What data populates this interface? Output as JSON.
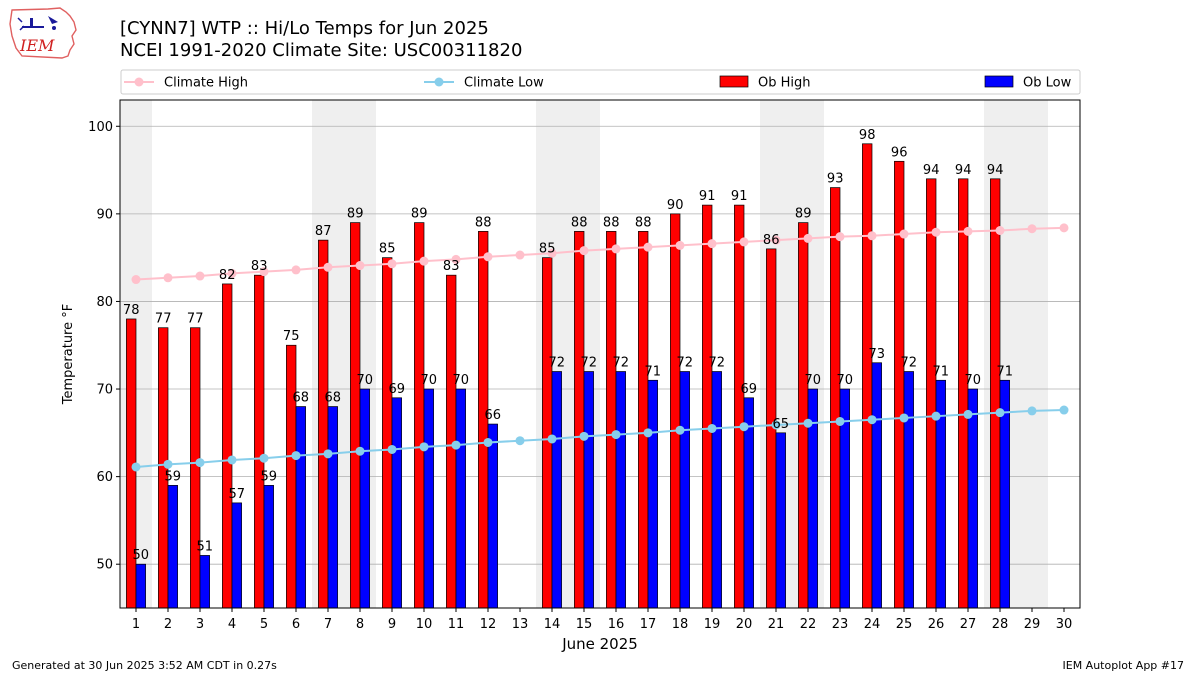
{
  "header": {
    "title_line1": "[CYNN7] WTP :: Hi/Lo Temps for Jun 2025",
    "title_line2": "NCEI 1991-2020 Climate Site: USC00311820",
    "logo_text": "IEM"
  },
  "footer": {
    "generated": "Generated at 30 Jun 2025 3:52 AM CDT in 0.27s",
    "app": "IEM Autoplot App #17"
  },
  "colors": {
    "climate_high": "#ffc0cb",
    "climate_low": "#87ceeb",
    "ob_high": "#ff0000",
    "ob_low": "#0000ff",
    "weekend_band": "#efefef",
    "grid": "#b0b0b0"
  },
  "chart_data": {
    "type": "bar",
    "xlabel": "June 2025",
    "ylabel": "Temperature °F",
    "ylim": [
      45,
      103
    ],
    "yticks": [
      50,
      60,
      70,
      80,
      90,
      100
    ],
    "xlim": [
      0.5,
      30.5
    ],
    "grid": "horizontal",
    "legend_placement": "top",
    "days": [
      1,
      2,
      3,
      4,
      5,
      6,
      7,
      8,
      9,
      10,
      11,
      12,
      13,
      14,
      15,
      16,
      17,
      18,
      19,
      20,
      21,
      22,
      23,
      24,
      25,
      26,
      27,
      28,
      29,
      30
    ],
    "weekend_days": [
      1,
      7,
      8,
      14,
      15,
      21,
      22,
      28,
      29
    ],
    "series": [
      {
        "name": "Climate High",
        "kind": "line",
        "values": [
          82.5,
          82.7,
          82.9,
          83.2,
          83.4,
          83.6,
          83.9,
          84.1,
          84.3,
          84.6,
          84.8,
          85.1,
          85.3,
          85.5,
          85.8,
          86.0,
          86.2,
          86.4,
          86.6,
          86.8,
          87.0,
          87.2,
          87.4,
          87.5,
          87.7,
          87.9,
          88.0,
          88.1,
          88.3,
          88.4
        ],
        "labels": []
      },
      {
        "name": "Climate Low",
        "kind": "line",
        "values": [
          61.1,
          61.4,
          61.6,
          61.9,
          62.1,
          62.4,
          62.6,
          62.9,
          63.1,
          63.4,
          63.6,
          63.9,
          64.1,
          64.3,
          64.6,
          64.8,
          65.0,
          65.3,
          65.5,
          65.7,
          65.9,
          66.1,
          66.3,
          66.5,
          66.7,
          66.9,
          67.1,
          67.3,
          67.5,
          67.6
        ],
        "labels": []
      },
      {
        "name": "Ob High",
        "kind": "bar",
        "values": [
          78,
          77,
          77,
          82,
          83,
          75,
          87,
          89,
          85,
          89,
          83,
          88,
          null,
          85,
          88,
          88,
          88,
          90,
          91,
          91,
          86,
          89,
          93,
          98,
          96,
          94,
          94,
          94,
          null,
          null
        ],
        "labels": [
          "78",
          "77",
          "77",
          "82",
          "83",
          "75",
          "87",
          "89",
          "85",
          "89",
          "83",
          "88",
          "",
          "85",
          "88",
          "88",
          "88",
          "90",
          "91",
          "91",
          "86",
          "89",
          "93",
          "98",
          "96",
          "94",
          "94",
          "94",
          "",
          ""
        ]
      },
      {
        "name": "Ob Low",
        "kind": "bar",
        "values": [
          50,
          59,
          51,
          57,
          59,
          68,
          68,
          70,
          69,
          70,
          70,
          66,
          null,
          72,
          72,
          72,
          71,
          72,
          72,
          69,
          65,
          70,
          70,
          73,
          72,
          71,
          70,
          71,
          null,
          null
        ],
        "labels": [
          "50",
          "59",
          "51",
          "57",
          "59",
          "68",
          "68",
          "70",
          "69",
          "70",
          "70",
          "66",
          "",
          "72",
          "72",
          "72",
          "71",
          "72",
          "72",
          "69",
          "65",
          "70",
          "70",
          "73",
          "72",
          "71",
          "70",
          "71",
          "",
          ""
        ]
      }
    ]
  }
}
